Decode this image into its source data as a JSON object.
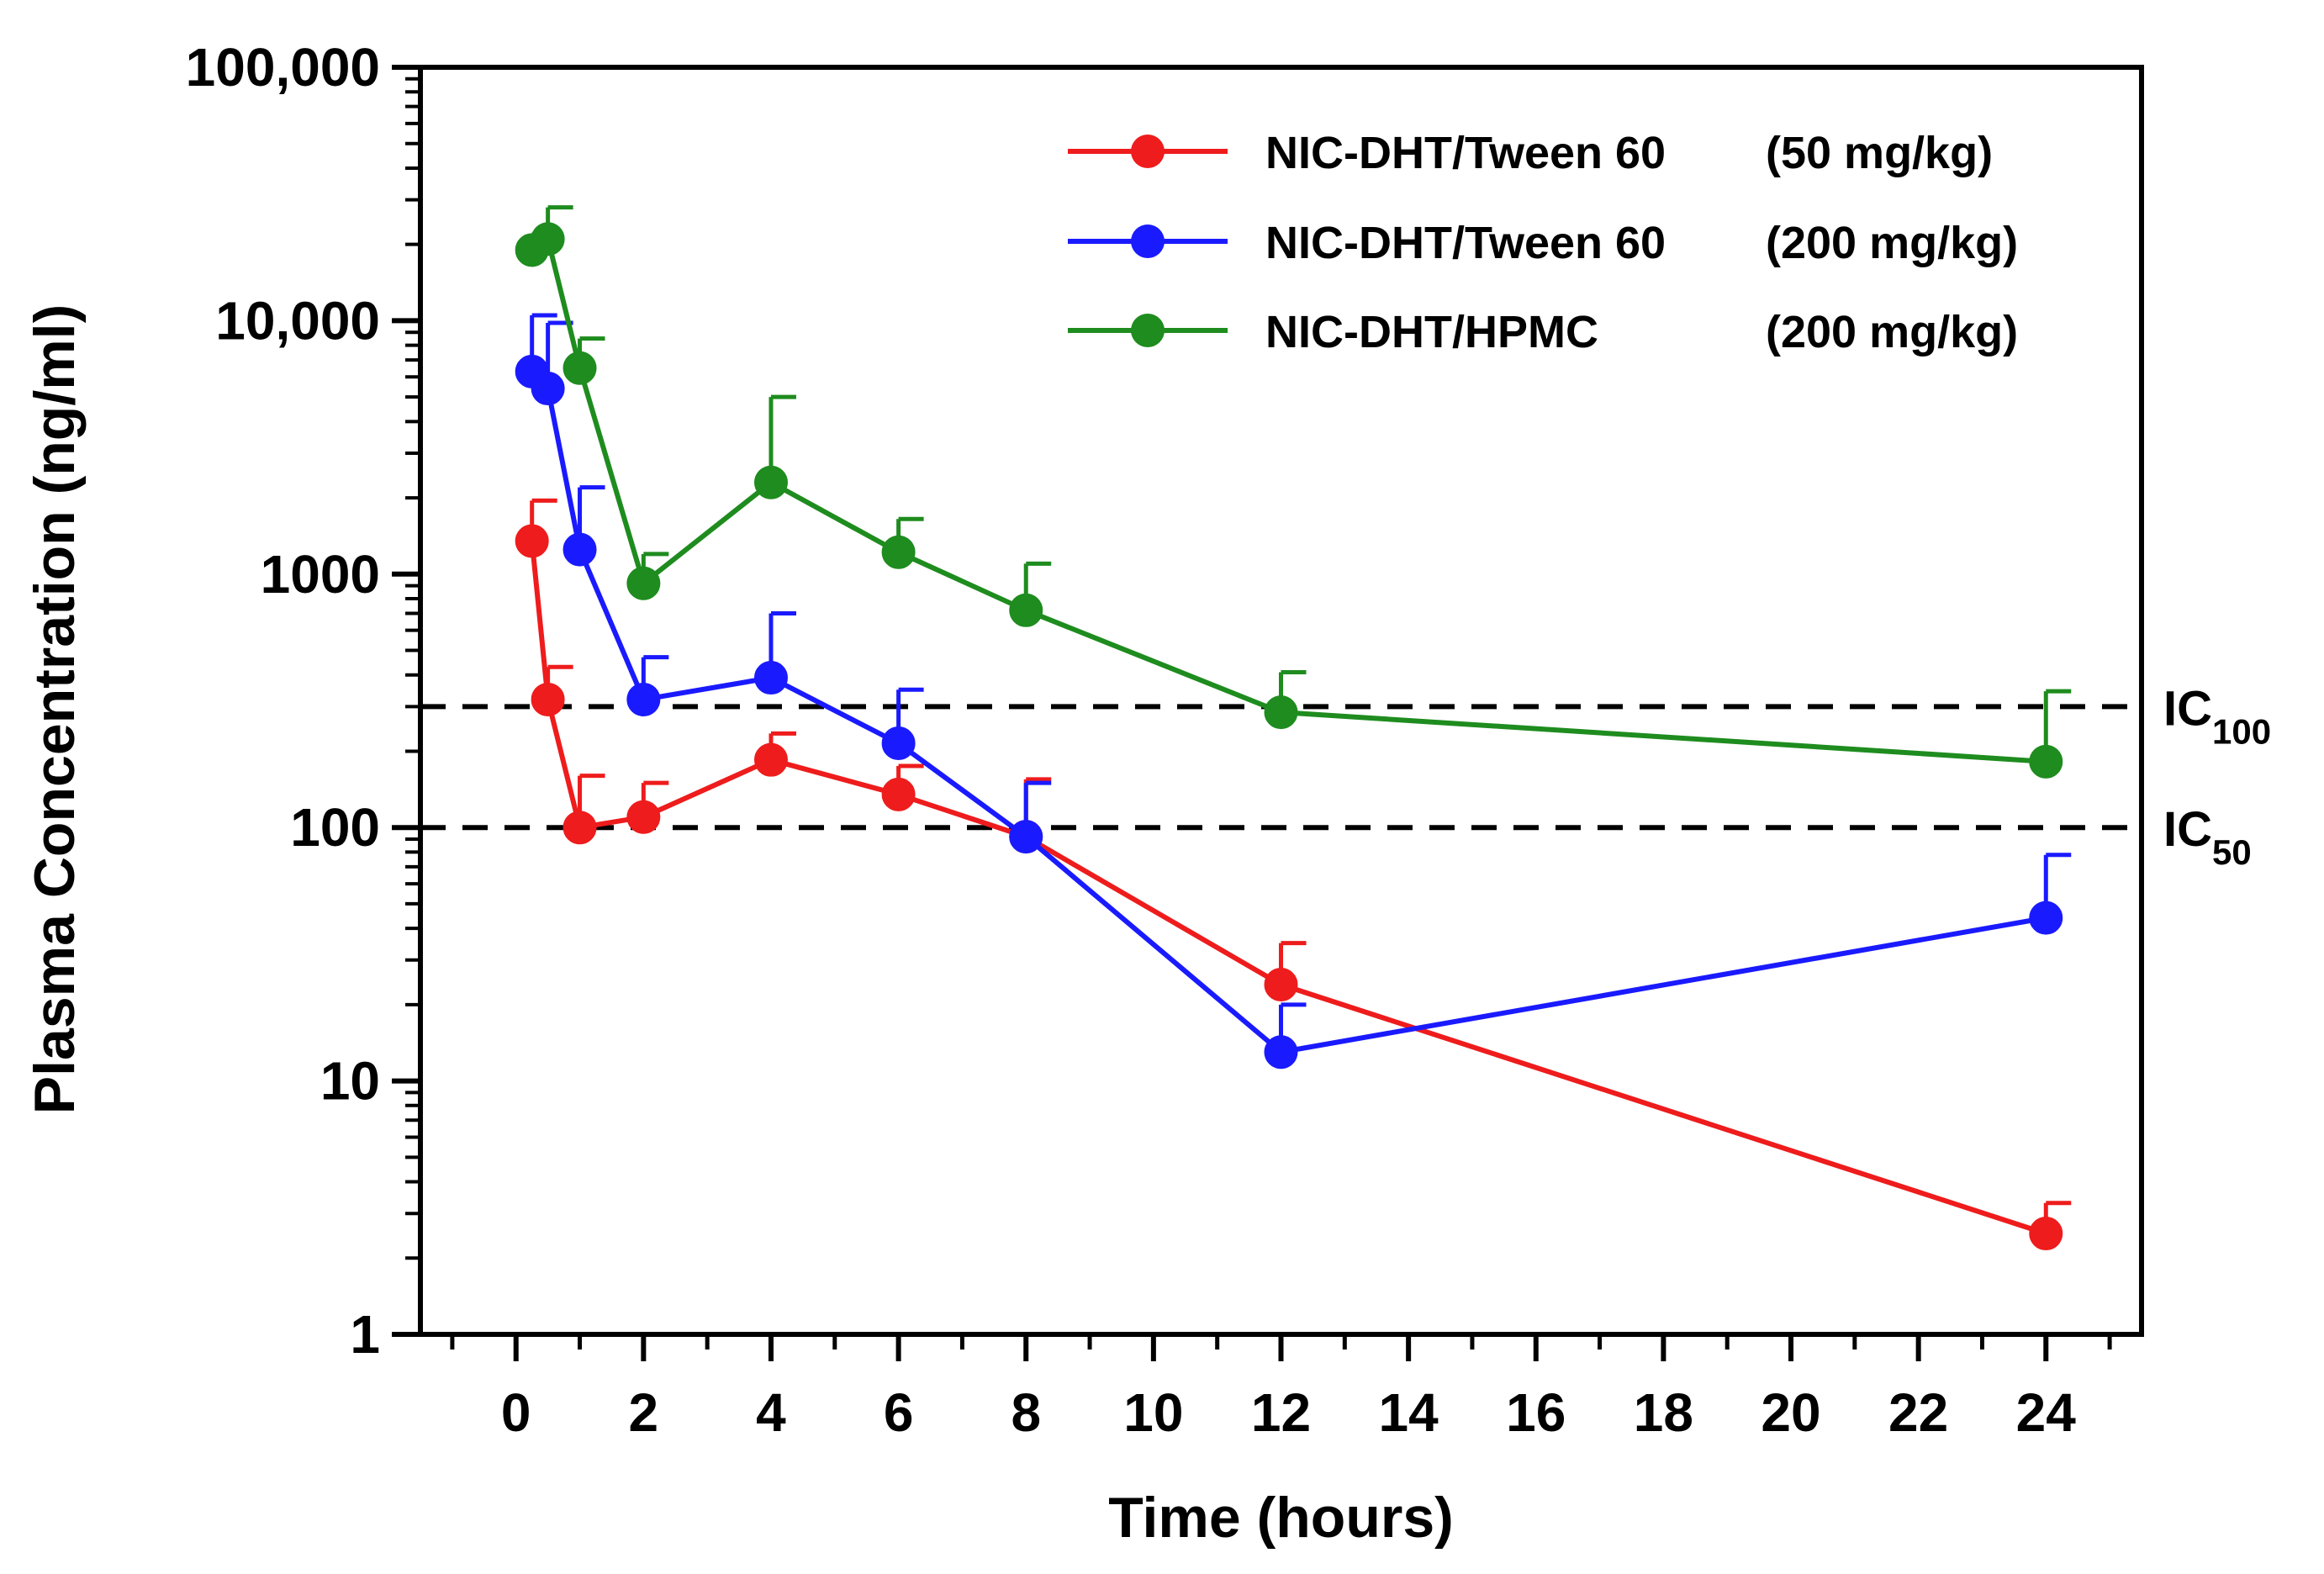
{
  "chart_data": {
    "type": "line",
    "title": "",
    "xlabel": "Time (hours)",
    "ylabel": "Plasma Concentration (ng/ml)",
    "xlim": [
      -1.5,
      25.5
    ],
    "ylim": [
      1,
      100000
    ],
    "yscale": "log",
    "grid": false,
    "legend_position": "top-right",
    "x_ticks": [
      0,
      2,
      4,
      6,
      8,
      10,
      12,
      14,
      16,
      18,
      20,
      22,
      24
    ],
    "x_tick_labels": [
      "0",
      "2",
      "4",
      "6",
      "8",
      "10",
      "12",
      "14",
      "16",
      "18",
      "20",
      "22",
      "24"
    ],
    "y_ticks": [
      1,
      10,
      100,
      1000,
      10000,
      100000
    ],
    "y_tick_labels": [
      "1",
      "10",
      "100",
      "1000",
      "10,000",
      "100,000"
    ],
    "series": [
      {
        "name": "NIC-DHT/Tween 60",
        "dose": "(50 mg/kg)",
        "color": "#ee1c1c",
        "x": [
          0.25,
          0.5,
          1,
          2,
          4,
          6,
          8,
          12,
          24
        ],
        "y": [
          1350,
          320,
          100,
          110,
          185,
          135,
          92,
          24,
          2.5
        ],
        "err_upper": [
          1950,
          430,
          160,
          150,
          235,
          175,
          155,
          35,
          3.3
        ]
      },
      {
        "name": "NIC-DHT/Tween 60",
        "dose": "(200 mg/kg)",
        "color": "#1a1aff",
        "x": [
          0.25,
          0.5,
          1,
          2,
          4,
          6,
          8,
          12,
          24
        ],
        "y": [
          6300,
          5400,
          1250,
          320,
          390,
          215,
          92,
          13,
          44
        ],
        "err_upper": [
          10500,
          9800,
          2200,
          470,
          700,
          350,
          150,
          20,
          78
        ]
      },
      {
        "name": "NIC-DHT/HPMC",
        "dose": "(200 mg/kg)",
        "color": "#1e8c1e",
        "x": [
          0.25,
          0.5,
          1,
          2,
          4,
          6,
          8,
          12,
          24
        ],
        "y": [
          19000,
          21000,
          6500,
          920,
          2300,
          1220,
          720,
          285,
          182
        ],
        "err_upper": [
          22000,
          28000,
          8500,
          1200,
          5000,
          1650,
          1100,
          410,
          345
        ]
      }
    ],
    "reference_lines": [
      {
        "label": "IC",
        "subscript": "100",
        "y": 300,
        "style": "dashed"
      },
      {
        "label": "IC",
        "subscript": "50",
        "y": 100,
        "style": "dashed"
      }
    ]
  }
}
